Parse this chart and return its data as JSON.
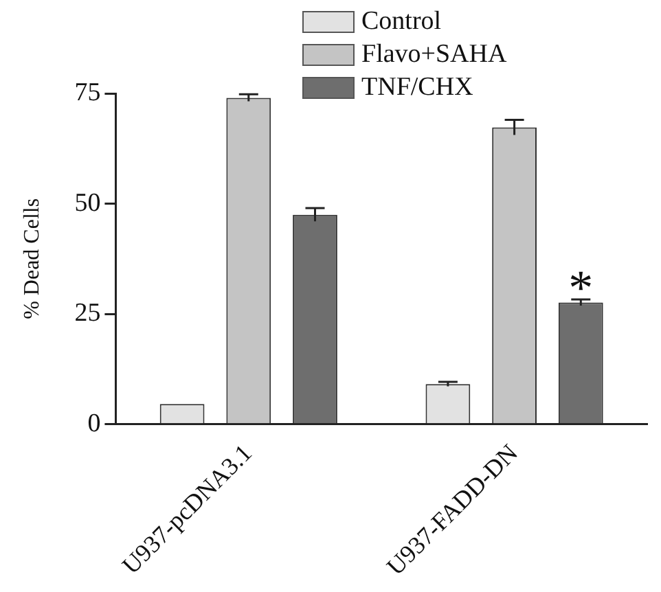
{
  "chart_data": {
    "type": "bar",
    "ylabel": "% Dead Cells",
    "categories": [
      "U937-pcDNA3.1",
      "U937-FADD-DN"
    ],
    "series": [
      {
        "name": "Control",
        "color": "#e2e2e2",
        "values": [
          4.6,
          9.1
        ],
        "errors": [
          null,
          0.5
        ]
      },
      {
        "name": "Flavo+SAHA",
        "color": "#c4c4c4",
        "values": [
          74.0,
          67.3
        ],
        "errors": [
          0.8,
          1.7
        ]
      },
      {
        "name": "TNF/CHX",
        "color": "#6e6e6e",
        "values": [
          47.5,
          27.6
        ],
        "errors": [
          1.5,
          0.7
        ]
      }
    ],
    "ylim": [
      0,
      75
    ],
    "yticks": [
      0,
      25,
      50,
      75
    ],
    "grid": false,
    "legend": "top",
    "annotations": [
      "*"
    ]
  }
}
